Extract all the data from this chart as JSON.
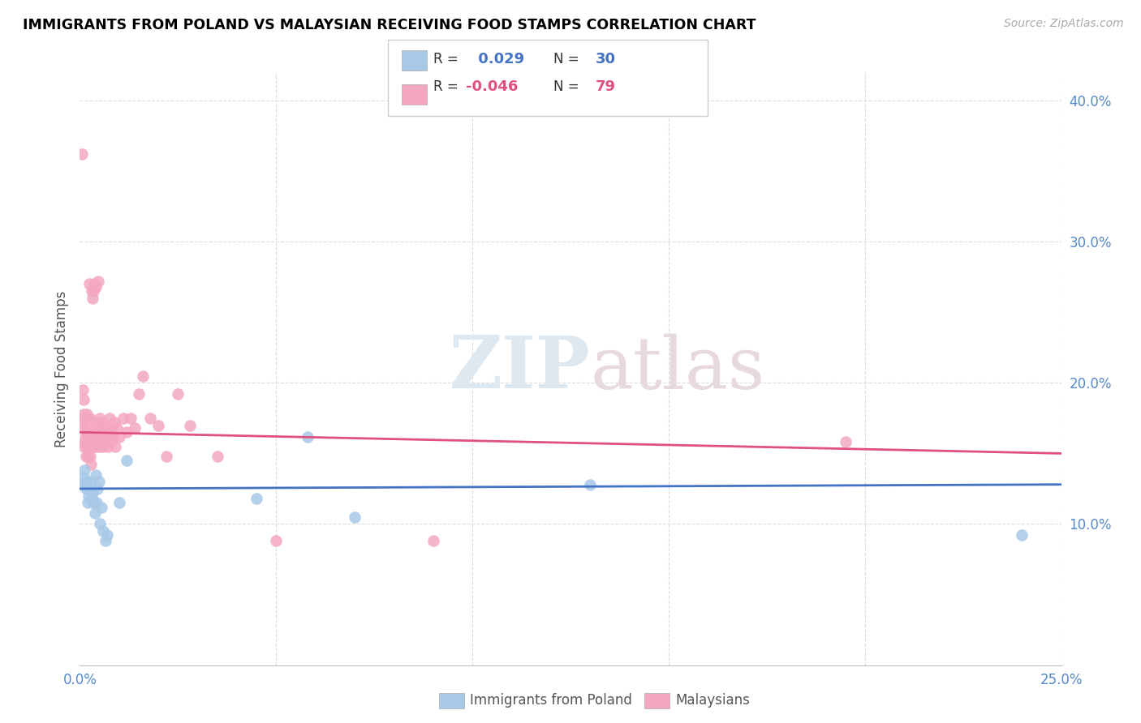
{
  "title": "IMMIGRANTS FROM POLAND VS MALAYSIAN RECEIVING FOOD STAMPS CORRELATION CHART",
  "source": "Source: ZipAtlas.com",
  "ylabel": "Receiving Food Stamps",
  "xlim": [
    0.0,
    0.25
  ],
  "ylim": [
    0.0,
    0.42
  ],
  "legend_label1": "Immigrants from Poland",
  "legend_label2": "Malaysians",
  "r1": 0.029,
  "n1": 30,
  "r2": -0.046,
  "n2": 79,
  "color_blue": "#a8c8e8",
  "color_pink": "#f4a8c0",
  "line_color_blue": "#4472c4",
  "line_color_pink": "#e05080",
  "watermark_zip": "ZIP",
  "watermark_atlas": "atlas",
  "poland_x": [
    0.0008,
    0.001,
    0.0012,
    0.0015,
    0.0015,
    0.0018,
    0.002,
    0.0022,
    0.0025,
    0.0025,
    0.003,
    0.0032,
    0.0035,
    0.0038,
    0.004,
    0.0042,
    0.0045,
    0.0048,
    0.005,
    0.0055,
    0.006,
    0.0065,
    0.007,
    0.01,
    0.012,
    0.045,
    0.058,
    0.07,
    0.13,
    0.24
  ],
  "poland_y": [
    0.128,
    0.133,
    0.138,
    0.125,
    0.13,
    0.128,
    0.115,
    0.12,
    0.125,
    0.13,
    0.118,
    0.122,
    0.115,
    0.108,
    0.135,
    0.115,
    0.125,
    0.13,
    0.1,
    0.112,
    0.095,
    0.088,
    0.092,
    0.115,
    0.145,
    0.118,
    0.162,
    0.105,
    0.128,
    0.092
  ],
  "malaysian_x": [
    0.0005,
    0.0007,
    0.0008,
    0.0009,
    0.001,
    0.001,
    0.001,
    0.0012,
    0.0013,
    0.0014,
    0.0015,
    0.0015,
    0.0016,
    0.0017,
    0.0018,
    0.0018,
    0.002,
    0.002,
    0.0022,
    0.0022,
    0.0024,
    0.0025,
    0.0025,
    0.0026,
    0.0027,
    0.0028,
    0.0028,
    0.003,
    0.003,
    0.0032,
    0.0033,
    0.0035,
    0.0035,
    0.0036,
    0.0038,
    0.0038,
    0.004,
    0.004,
    0.0042,
    0.0043,
    0.0045,
    0.0046,
    0.0048,
    0.005,
    0.005,
    0.0052,
    0.0055,
    0.0055,
    0.0058,
    0.006,
    0.0062,
    0.0065,
    0.0068,
    0.007,
    0.0072,
    0.0075,
    0.0078,
    0.008,
    0.0082,
    0.0085,
    0.0088,
    0.009,
    0.0095,
    0.01,
    0.011,
    0.012,
    0.013,
    0.014,
    0.015,
    0.016,
    0.018,
    0.02,
    0.022,
    0.025,
    0.028,
    0.035,
    0.05,
    0.09,
    0.195
  ],
  "malaysian_y": [
    0.362,
    0.175,
    0.195,
    0.178,
    0.155,
    0.168,
    0.188,
    0.158,
    0.162,
    0.172,
    0.148,
    0.175,
    0.165,
    0.158,
    0.155,
    0.178,
    0.148,
    0.175,
    0.165,
    0.155,
    0.27,
    0.148,
    0.165,
    0.158,
    0.175,
    0.142,
    0.158,
    0.265,
    0.165,
    0.26,
    0.162,
    0.265,
    0.155,
    0.27,
    0.162,
    0.172,
    0.268,
    0.155,
    0.162,
    0.168,
    0.165,
    0.272,
    0.155,
    0.175,
    0.162,
    0.158,
    0.168,
    0.162,
    0.172,
    0.155,
    0.162,
    0.168,
    0.162,
    0.165,
    0.155,
    0.175,
    0.162,
    0.158,
    0.168,
    0.162,
    0.172,
    0.155,
    0.168,
    0.162,
    0.175,
    0.165,
    0.175,
    0.168,
    0.192,
    0.205,
    0.175,
    0.17,
    0.148,
    0.192,
    0.17,
    0.148,
    0.088,
    0.088,
    0.158
  ]
}
